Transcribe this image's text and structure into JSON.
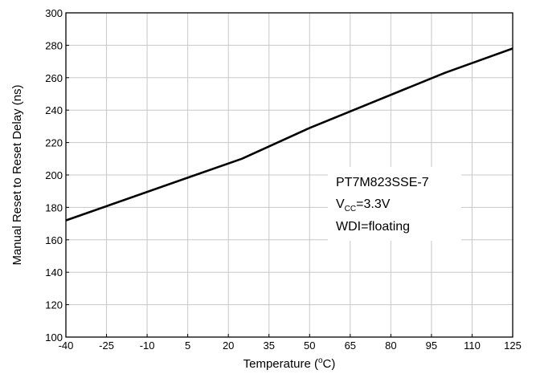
{
  "chart_data": {
    "type": "line",
    "xlabel": "Temperature (°C)",
    "xlabel_parts": {
      "before": "Temperature (",
      "sup": "o",
      "after": "C)"
    },
    "ylabel": "Manual Reset to Reset Delay (ns)",
    "xlim": [
      -40,
      125
    ],
    "ylim": [
      100,
      300
    ],
    "x_ticks": [
      -40,
      -25,
      -10,
      5,
      20,
      35,
      50,
      65,
      80,
      95,
      110,
      125
    ],
    "y_ticks": [
      100,
      120,
      140,
      160,
      180,
      200,
      220,
      240,
      260,
      280,
      300
    ],
    "grid": true,
    "series": [
      {
        "x": [
          -40,
          25,
          50,
          100,
          125
        ],
        "y": [
          172,
          210,
          229,
          263,
          278
        ],
        "color": "#000000"
      }
    ],
    "annotations": {
      "line1": "PT7M823SSE-7",
      "line2_main": "V",
      "line2_sub": "CC",
      "line2_rest": "=3.3V",
      "line3": "WDI=floating"
    }
  }
}
